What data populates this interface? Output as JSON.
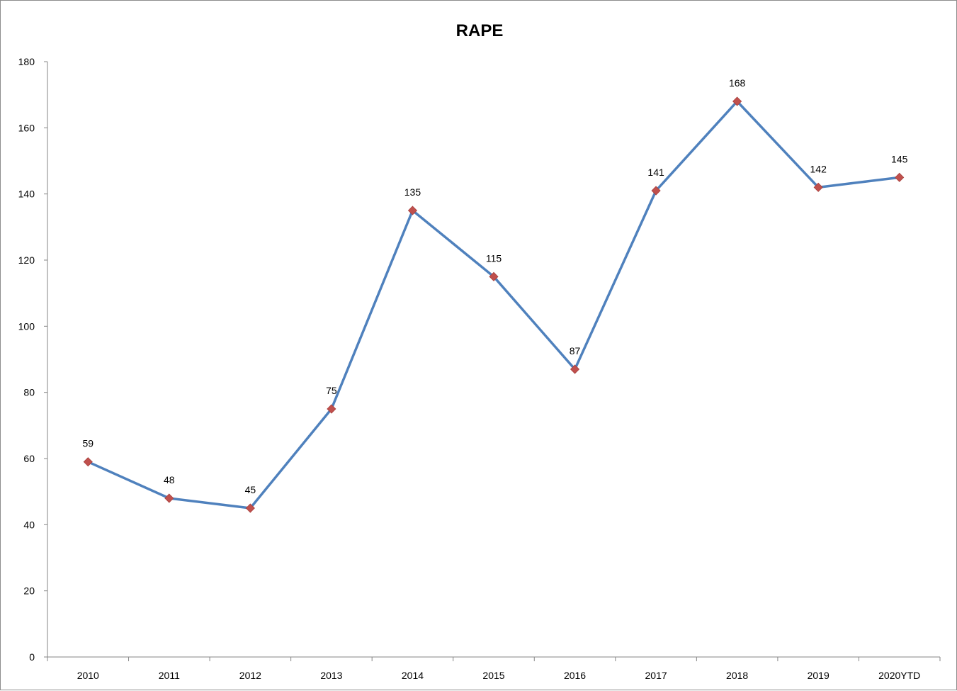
{
  "chart_data": {
    "type": "line",
    "title": "RAPE",
    "xlabel": "",
    "ylabel": "",
    "categories": [
      "2010",
      "2011",
      "2012",
      "2013",
      "2014",
      "2015",
      "2016",
      "2017",
      "2018",
      "2019",
      "2020YTD"
    ],
    "series": [
      {
        "values": [
          59,
          48,
          45,
          75,
          135,
          115,
          87,
          141,
          168,
          142,
          145
        ],
        "line_color": "#4F81BD",
        "marker_color": "#C0504D",
        "marker": "diamond"
      }
    ],
    "ylim": [
      0,
      180
    ],
    "yticks": [
      0,
      20,
      40,
      60,
      80,
      100,
      120,
      140,
      160,
      180
    ],
    "grid": false,
    "legend": "none",
    "data_labels": true
  }
}
